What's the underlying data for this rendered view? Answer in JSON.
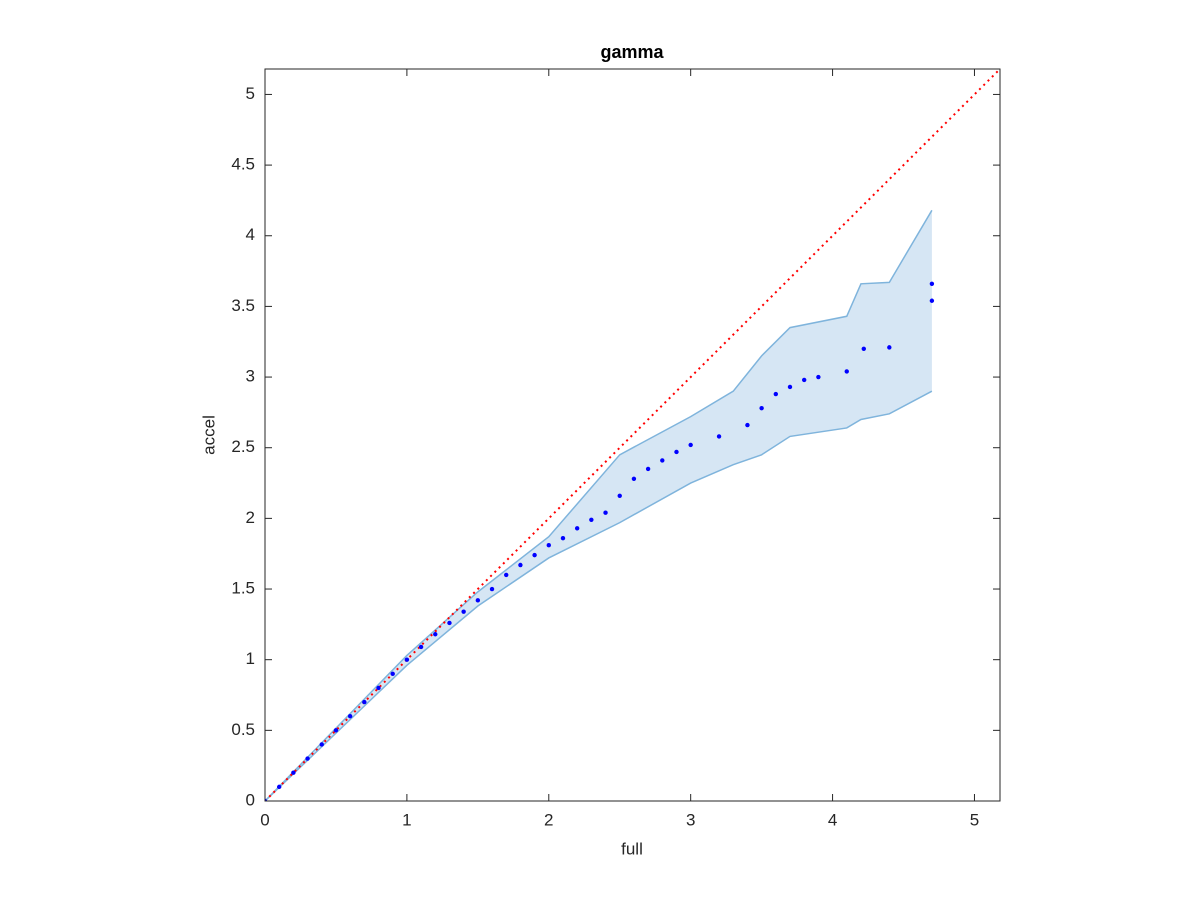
{
  "chart_data": {
    "type": "scatter",
    "title": "gamma",
    "x_label": "full",
    "y_label": "accel",
    "xlim": [
      0,
      5.18
    ],
    "ylim": [
      0,
      5.18
    ],
    "xticks": [
      0,
      1,
      2,
      3,
      4,
      5
    ],
    "yticks": [
      0,
      0.5,
      1,
      1.5,
      2,
      2.5,
      3,
      3.5,
      4,
      4.5,
      5
    ],
    "points": {
      "color": "#0000ff",
      "x": [
        0,
        0.1,
        0.2,
        0.3,
        0.4,
        0.5,
        0.6,
        0.7,
        0.8,
        0.9,
        1.0,
        1.1,
        1.2,
        1.3,
        1.4,
        1.5,
        1.6,
        1.7,
        1.8,
        1.9,
        2.0,
        2.1,
        2.2,
        2.3,
        2.4,
        2.5,
        2.6,
        2.7,
        2.8,
        2.9,
        3.0,
        3.2,
        3.4,
        3.5,
        3.6,
        3.7,
        3.8,
        3.9,
        4.1,
        4.22,
        4.4,
        4.7,
        4.7
      ],
      "y": [
        0,
        0.1,
        0.2,
        0.3,
        0.4,
        0.5,
        0.6,
        0.7,
        0.8,
        0.9,
        1.0,
        1.09,
        1.18,
        1.26,
        1.34,
        1.42,
        1.5,
        1.6,
        1.67,
        1.74,
        1.81,
        1.86,
        1.93,
        1.99,
        2.04,
        2.16,
        2.28,
        2.35,
        2.41,
        2.47,
        2.52,
        2.58,
        2.66,
        2.78,
        2.88,
        2.93,
        2.98,
        3.0,
        3.04,
        3.2,
        3.21,
        3.54,
        3.66
      ]
    },
    "band": {
      "color": "#7fb4dc",
      "fill": "#d6e6f4",
      "x": [
        0,
        1,
        1.5,
        2,
        2.5,
        3,
        3.3,
        3.5,
        3.7,
        4.1,
        4.2,
        4.4,
        4.7
      ],
      "lower": [
        0,
        0.96,
        1.38,
        1.72,
        1.97,
        2.25,
        2.38,
        2.45,
        2.58,
        2.64,
        2.7,
        2.74,
        2.9
      ],
      "upper": [
        0,
        1.03,
        1.48,
        1.87,
        2.45,
        2.72,
        2.9,
        3.15,
        3.35,
        3.43,
        3.66,
        3.67,
        4.18
      ]
    },
    "reference_line": {
      "color": "#ff0000",
      "x": [
        0,
        5.18
      ],
      "y": [
        0,
        5.18
      ]
    }
  }
}
